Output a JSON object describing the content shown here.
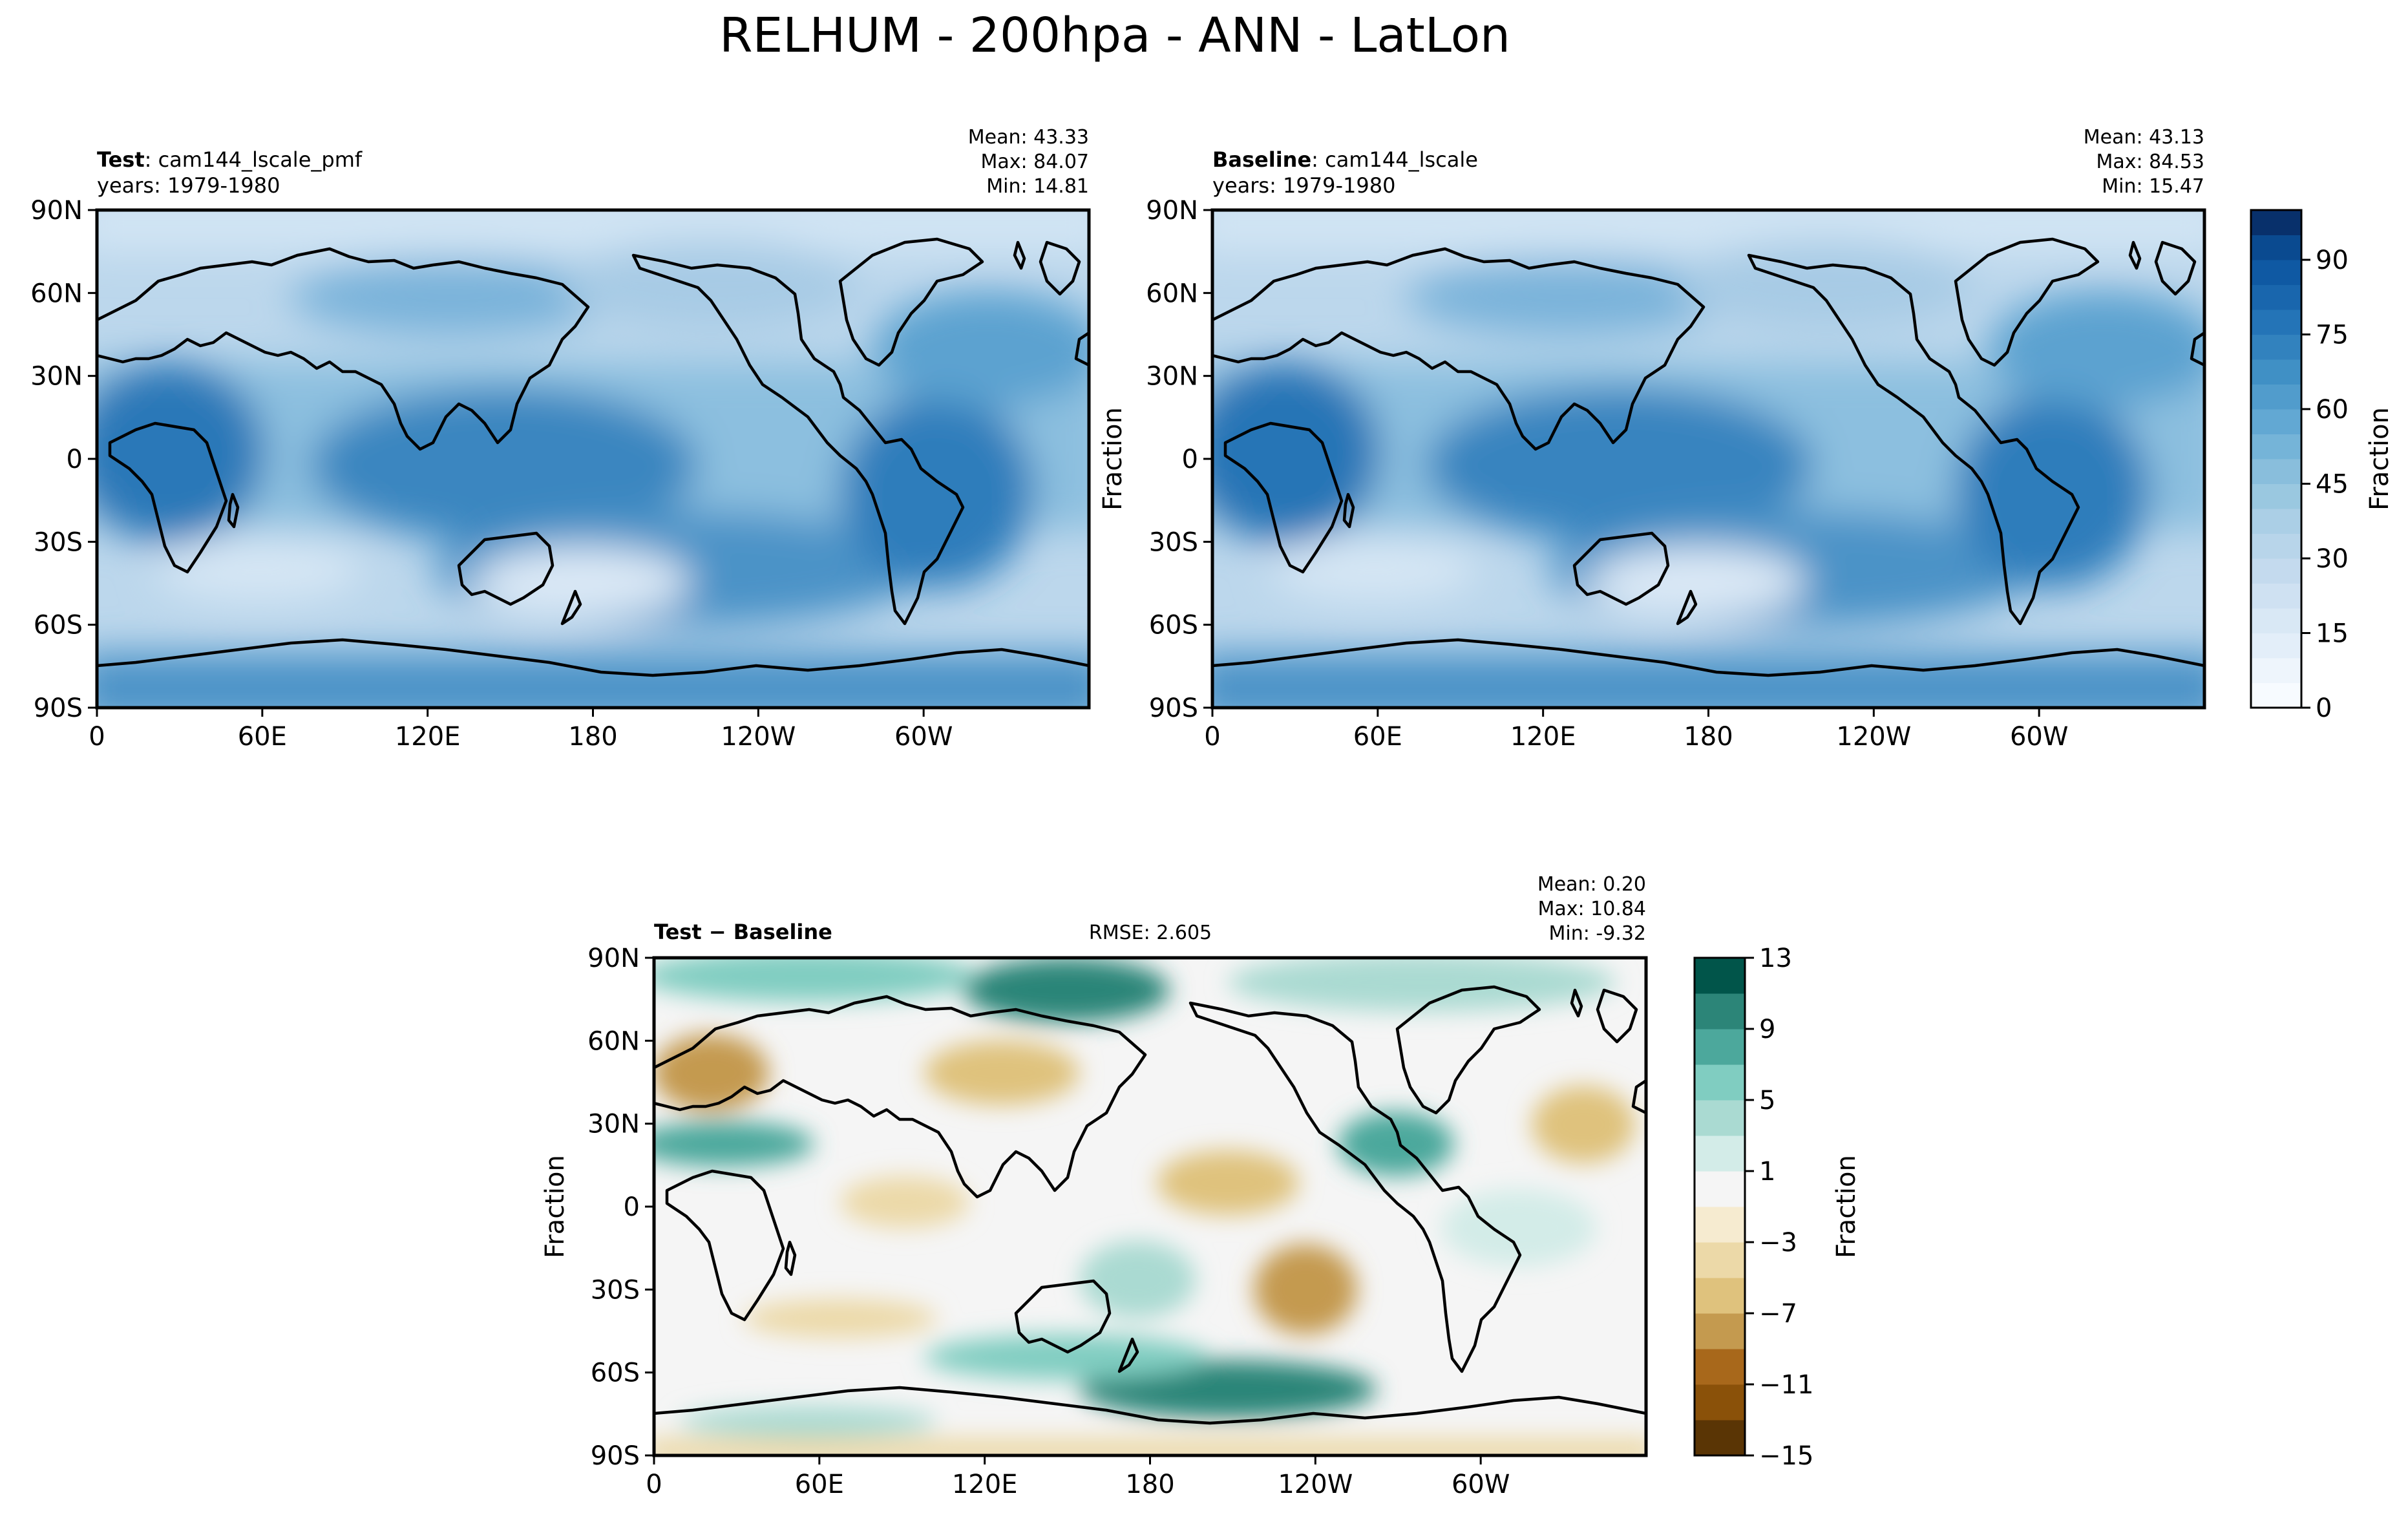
{
  "figure": {
    "title": "RELHUM - 200hpa - ANN - LatLon"
  },
  "chart_data": [
    {
      "type": "heatmap",
      "id": "test",
      "label_bold": "Test",
      "label_rest": ": cam144_lscale_pmf",
      "years": "years: 1979-1980",
      "stats": [
        "Mean: 43.33",
        "Max: 84.07",
        "Min: 14.81"
      ],
      "ylabel": "",
      "xticks": [
        "0",
        "60E",
        "120E",
        "180",
        "120W",
        "60W"
      ],
      "yticks": [
        "90N",
        "60N",
        "30N",
        "0",
        "30S",
        "60S",
        "90S"
      ],
      "xlim": [
        0,
        360
      ],
      "ylim": [
        -90,
        90
      ],
      "colormap": "Blues",
      "value_range": [
        0,
        100
      ],
      "stats_values": {
        "mean": 43.33,
        "max": 84.07,
        "min": 14.81
      }
    },
    {
      "type": "heatmap",
      "id": "baseline",
      "label_bold": "Baseline",
      "label_rest": ": cam144_lscale",
      "years": "years: 1979-1980",
      "stats": [
        "Mean: 43.13",
        "Max: 84.53",
        "Min: 15.47"
      ],
      "ylabel": "Fraction",
      "xticks": [
        "0",
        "60E",
        "120E",
        "180",
        "120W",
        "60W"
      ],
      "yticks": [
        "90N",
        "60N",
        "30N",
        "0",
        "30S",
        "60S",
        "90S"
      ],
      "xlim": [
        0,
        360
      ],
      "ylim": [
        -90,
        90
      ],
      "colormap": "Blues",
      "value_range": [
        0,
        100
      ],
      "colorbar": {
        "label": "Fraction",
        "levels": [
          0,
          5,
          10,
          15,
          20,
          25,
          30,
          35,
          40,
          45,
          50,
          55,
          60,
          65,
          70,
          75,
          80,
          85,
          90,
          95,
          100
        ],
        "tick_labels": [
          "0",
          "15",
          "30",
          "45",
          "60",
          "75",
          "90"
        ],
        "tick_values": [
          0,
          15,
          30,
          45,
          60,
          75,
          90
        ],
        "colors": [
          "#f7fbff",
          "#eef5fc",
          "#e3eef9",
          "#d9e8f5",
          "#cfe1f2",
          "#c4daee",
          "#b8d5ea",
          "#abcfe6",
          "#9ac8e0",
          "#89bedc",
          "#75b4d8",
          "#62a8d3",
          "#519ccc",
          "#4090c5",
          "#3282be",
          "#2474b7",
          "#1966ad",
          "#0f59a3",
          "#0a4a90",
          "#08306b"
        ]
      }
    },
    {
      "type": "heatmap",
      "id": "diff",
      "label_bold": "Test − Baseline",
      "rmse": "RMSE: 2.605",
      "stats": [
        "Mean:  0.20",
        "Max: 10.84",
        "Min: -9.32"
      ],
      "ylabel": "Fraction",
      "xticks": [
        "0",
        "60E",
        "120E",
        "180",
        "120W",
        "60W"
      ],
      "yticks": [
        "90N",
        "60N",
        "30N",
        "0",
        "30S",
        "60S",
        "90S"
      ],
      "xlim": [
        0,
        360
      ],
      "ylim": [
        -90,
        90
      ],
      "colormap": "BrBG",
      "value_range": [
        -15,
        13
      ],
      "stats_values": {
        "mean": 0.2,
        "max": 10.84,
        "min": -9.32,
        "rmse": 2.605
      },
      "colorbar": {
        "label": "Fraction",
        "levels": [
          -15,
          -13,
          -11,
          -9,
          -7,
          -5,
          -3,
          -1,
          1,
          3,
          5,
          7,
          9,
          11,
          13
        ],
        "tick_labels": [
          "−15",
          "−11",
          "−7",
          "−3",
          "1",
          "5",
          "9",
          "13"
        ],
        "tick_values": [
          -15,
          -11,
          -7,
          -3,
          1,
          5,
          9,
          13
        ],
        "colors": [
          "#5a3505",
          "#8a5109",
          "#a8681b",
          "#c49a4f",
          "#dfc27d",
          "#ecd9a8",
          "#f6ebd0",
          "#f5f5f5",
          "#d3ece8",
          "#aadad2",
          "#80cdc1",
          "#4ca89c",
          "#2c8578",
          "#01554a"
        ]
      }
    }
  ]
}
